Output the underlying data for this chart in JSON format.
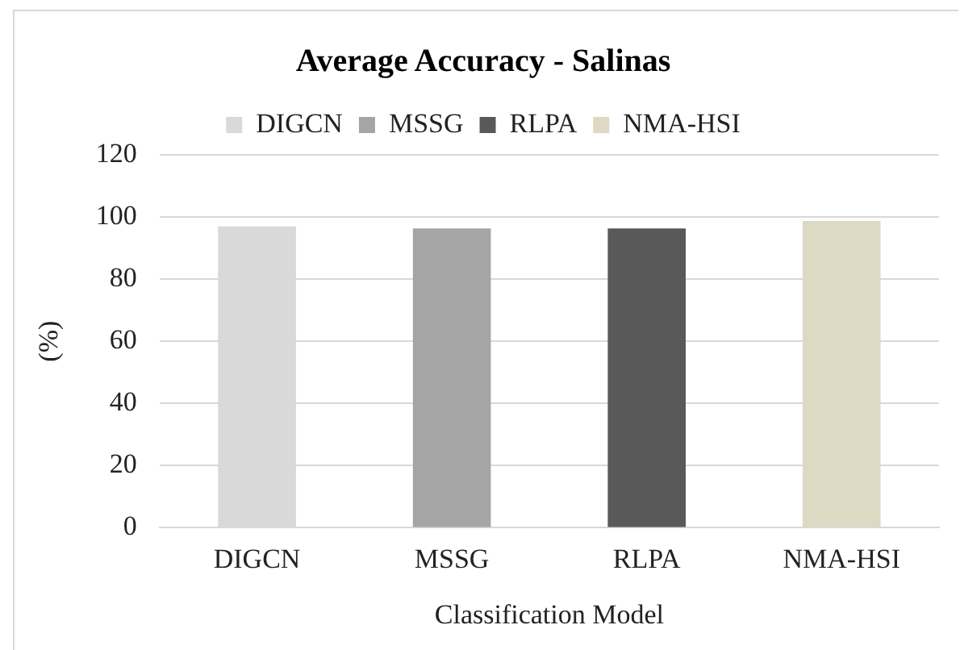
{
  "chart_data": {
    "type": "bar",
    "title": "Average Accuracy - Salinas",
    "xlabel": "Classification Model",
    "ylabel": "(%)",
    "categories": [
      "DIGCN",
      "MSSG",
      "RLPA",
      "NMA-HSI"
    ],
    "series": [
      {
        "name": "DIGCN",
        "color": "#d9d9d9",
        "values": [
          97.0,
          null,
          null,
          null
        ]
      },
      {
        "name": "MSSG",
        "color": "#a5a5a5",
        "values": [
          null,
          96.3,
          null,
          null
        ]
      },
      {
        "name": "RLPA",
        "color": "#595959",
        "values": [
          null,
          null,
          96.3,
          null
        ]
      },
      {
        "name": "NMA-HSI",
        "color": "#ddd9c3",
        "values": [
          null,
          null,
          null,
          98.7
        ]
      }
    ],
    "ylim": [
      0,
      120
    ],
    "yticks": [
      0,
      20,
      40,
      60,
      80,
      100,
      120
    ],
    "grid": "y",
    "legend": "top"
  }
}
